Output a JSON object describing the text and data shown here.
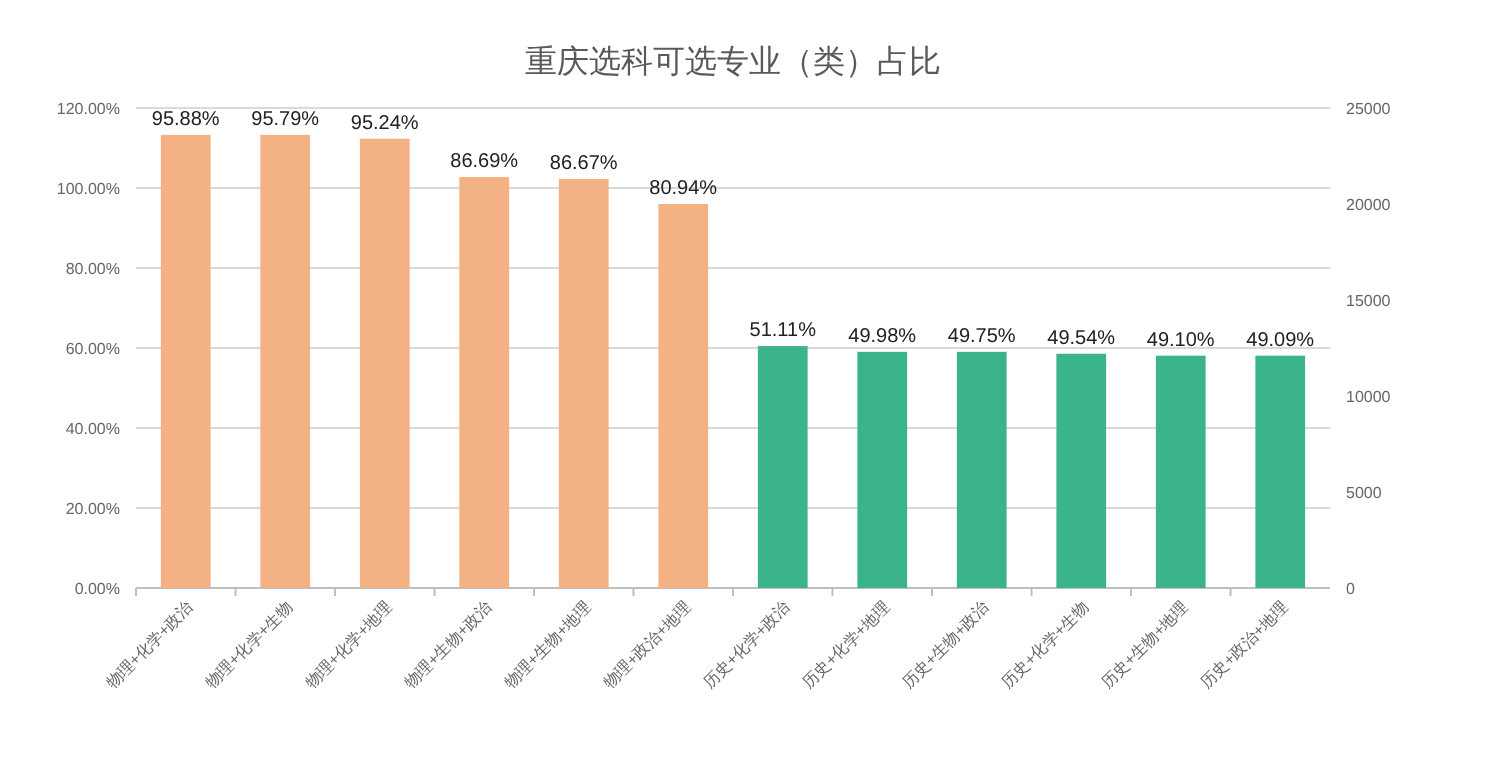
{
  "chart_data": {
    "type": "bar",
    "title": "重庆选科可选专业（类）占比",
    "categories": [
      "物理+化学+政治",
      "物理+化学+生物",
      "物理+化学+地理",
      "物理+生物+政治",
      "物理+生物+地理",
      "物理+政治+地理",
      "历史+化学+政治",
      "历史+化学+地理",
      "历史+生物+政治",
      "历史+化学+生物",
      "历史+生物+地理",
      "历史+政治+地理"
    ],
    "series": [
      {
        "axis": "y2",
        "values": [
          23600,
          23600,
          23400,
          21400,
          21300,
          20000,
          12600,
          12300,
          12300,
          12200,
          12100,
          12100
        ],
        "colors": [
          "#f4b183",
          "#f4b183",
          "#f4b183",
          "#f4b183",
          "#f4b183",
          "#f4b183",
          "#3cb489",
          "#3cb489",
          "#3cb489",
          "#3cb489",
          "#3cb489",
          "#3cb489"
        ]
      }
    ],
    "annotations": [
      "95.88%",
      "95.79%",
      "95.24%",
      "86.69%",
      "86.67%",
      "80.94%",
      "51.11%",
      "49.98%",
      "49.75%",
      "49.54%",
      "49.10%",
      "49.09%"
    ],
    "ylim": [
      0,
      120
    ],
    "yticks": [
      {
        "value": 0,
        "label": "0.00%"
      },
      {
        "value": 20,
        "label": "20.00%"
      },
      {
        "value": 40,
        "label": "40.00%"
      },
      {
        "value": 60,
        "label": "60.00%"
      },
      {
        "value": 80,
        "label": "80.00%"
      },
      {
        "value": 100,
        "label": "100.00%"
      },
      {
        "value": 120,
        "label": "120.00%"
      }
    ],
    "y2lim": [
      0,
      25000
    ],
    "y2ticks": [
      0,
      5000,
      10000,
      15000,
      20000,
      25000
    ],
    "grid": "y"
  }
}
